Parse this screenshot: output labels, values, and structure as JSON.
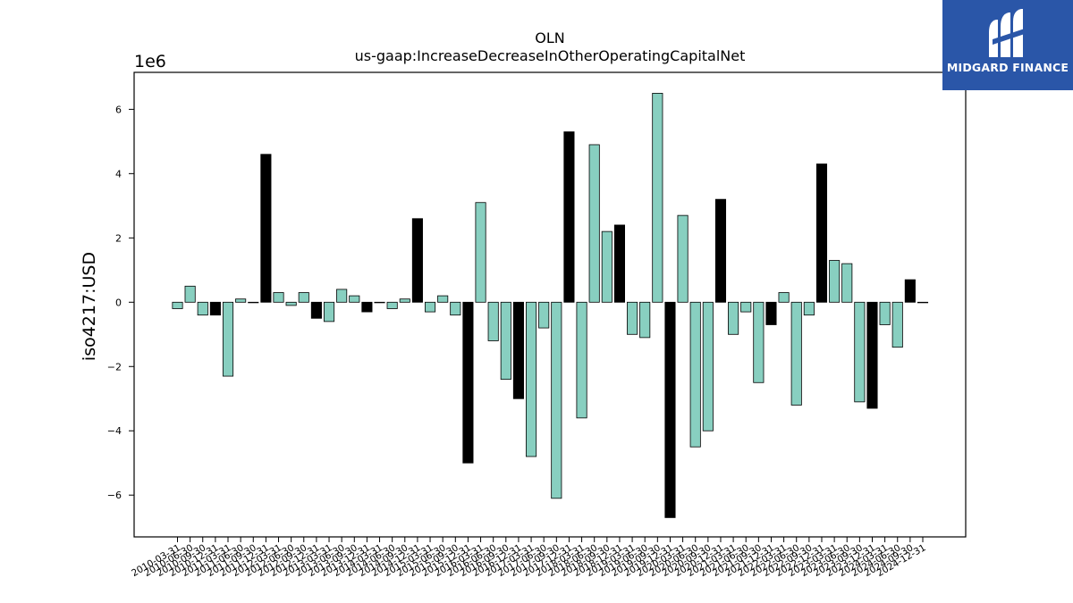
{
  "logo": {
    "text": "MIDGARD FINANCE"
  },
  "chart_data": {
    "type": "bar",
    "title": "OLN",
    "subtitle": "us-gaap:IncreaseDecreaseInOtherOperatingCapitalNet",
    "ylabel": "iso4217:USD",
    "xlabel": "",
    "y_scale_label": "1e6",
    "y_multiplier": 1000000,
    "ylim": [
      -7.3,
      7.15
    ],
    "yticks": [
      -6,
      -4,
      -2,
      0,
      2,
      4,
      6
    ],
    "ytick_labels": [
      "−6",
      "−4",
      "−2",
      "0",
      "2",
      "4",
      "6"
    ],
    "colors": {
      "quarterly": "#88cfc0",
      "annual": "#000000",
      "edge": "#000000"
    },
    "categories": [
      "2010-03-31",
      "2010-06-30",
      "2010-09-30",
      "2010-12-31",
      "2011-03-31",
      "2011-06-30",
      "2011-09-30",
      "2011-12-31",
      "2012-03-31",
      "2012-06-30",
      "2012-09-30",
      "2012-12-31",
      "2013-03-31",
      "2013-06-30",
      "2013-09-30",
      "2013-12-31",
      "2014-03-31",
      "2014-06-30",
      "2014-09-30",
      "2014-12-31",
      "2015-03-31",
      "2015-06-30",
      "2015-09-30",
      "2015-12-31",
      "2016-03-31",
      "2016-06-30",
      "2016-09-30",
      "2016-12-31",
      "2017-03-31",
      "2017-06-30",
      "2017-09-30",
      "2017-12-31",
      "2018-03-31",
      "2018-06-30",
      "2018-09-30",
      "2018-12-31",
      "2019-03-31",
      "2019-06-30",
      "2019-09-30",
      "2019-12-31",
      "2020-03-31",
      "2020-06-30",
      "2020-09-30",
      "2020-12-31",
      "2021-03-31",
      "2021-06-30",
      "2021-09-30",
      "2021-12-31",
      "2022-03-31",
      "2022-06-30",
      "2022-09-30",
      "2022-12-31",
      "2023-03-31",
      "2023-06-30",
      "2023-09-30",
      "2023-12-31",
      "2024-03-31",
      "2024-06-30",
      "2024-09-30",
      "2024-12-31"
    ],
    "values": [
      -0.2,
      0.5,
      -0.4,
      -0.4,
      -2.3,
      0.1,
      0.0,
      4.6,
      0.3,
      -0.1,
      0.3,
      -0.5,
      -0.6,
      0.4,
      0.2,
      -0.3,
      0.0,
      -0.2,
      0.1,
      2.6,
      -0.3,
      0.2,
      -0.4,
      -5.0,
      3.1,
      -1.2,
      -2.4,
      -3.0,
      -4.8,
      -0.8,
      -6.1,
      5.3,
      -3.6,
      4.9,
      2.2,
      2.4,
      -1.0,
      -1.1,
      6.5,
      -6.7,
      2.7,
      -4.5,
      -4.0,
      3.2,
      -1.0,
      -0.3,
      -2.5,
      -0.7,
      0.3,
      -3.2,
      -0.4,
      4.3,
      1.3,
      1.2,
      -3.1,
      -3.3,
      -0.7,
      -1.4,
      0.7,
      0.0
    ],
    "annual": [
      false,
      false,
      false,
      true,
      false,
      false,
      false,
      true,
      false,
      false,
      false,
      true,
      false,
      false,
      false,
      true,
      false,
      false,
      false,
      true,
      false,
      false,
      false,
      true,
      false,
      false,
      false,
      true,
      false,
      false,
      false,
      true,
      false,
      false,
      false,
      true,
      false,
      false,
      false,
      true,
      false,
      false,
      false,
      true,
      false,
      false,
      false,
      true,
      false,
      false,
      false,
      true,
      false,
      false,
      false,
      true,
      false,
      false,
      true,
      false
    ]
  }
}
